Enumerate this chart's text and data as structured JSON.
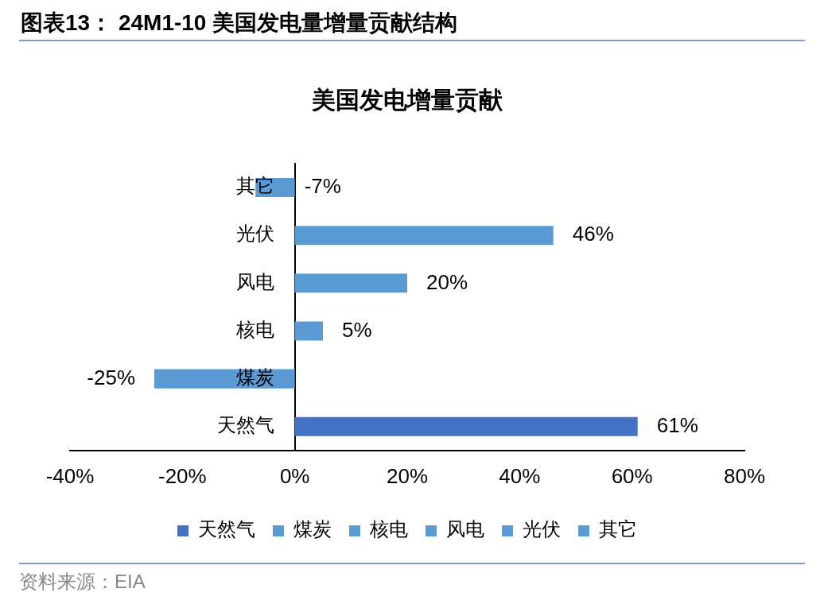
{
  "chart_data": {
    "type": "bar",
    "orientation": "horizontal",
    "stacked": true,
    "title": "图表13： 24M1-10 美国发电量增量贡献结构",
    "subtitle": "美国发电增量贡献",
    "categories": [
      "其它",
      "光伏",
      "风电",
      "核电",
      "煤炭",
      "天然气"
    ],
    "series": [
      {
        "name": "天然气",
        "color": "#4472c4",
        "values": [
          null,
          null,
          null,
          null,
          null,
          61
        ],
        "value_labels": [
          null,
          null,
          null,
          null,
          null,
          "61%"
        ]
      },
      {
        "name": "煤炭",
        "color": "#5b9bd5",
        "values": [
          null,
          null,
          null,
          null,
          -25,
          null
        ],
        "value_labels": [
          null,
          null,
          null,
          null,
          "-25%",
          null
        ]
      },
      {
        "name": "核电",
        "color": "#5b9bd5",
        "values": [
          null,
          null,
          null,
          5,
          null,
          null
        ],
        "value_labels": [
          null,
          null,
          null,
          "5%",
          null,
          null
        ]
      },
      {
        "name": "风电",
        "color": "#5b9bd5",
        "values": [
          null,
          null,
          20,
          null,
          null,
          null
        ],
        "value_labels": [
          null,
          null,
          "20%",
          null,
          null,
          null
        ]
      },
      {
        "name": "光伏",
        "color": "#5b9bd5",
        "values": [
          null,
          46,
          null,
          null,
          null,
          null
        ],
        "value_labels": [
          null,
          "46%",
          null,
          null,
          null,
          null
        ]
      },
      {
        "name": "其它",
        "color": "#5b9bd5",
        "values": [
          -7,
          null,
          null,
          null,
          null,
          null
        ],
        "value_labels": [
          "-7%",
          null,
          null,
          null,
          null,
          null
        ]
      }
    ],
    "xlim": [
      -40,
      80
    ],
    "xticks": [
      {
        "value": -40,
        "label": "-40%"
      },
      {
        "value": -20,
        "label": "-20%"
      },
      {
        "value": 0,
        "label": "0%"
      },
      {
        "value": 20,
        "label": "20%"
      },
      {
        "value": 40,
        "label": "40%"
      },
      {
        "value": 60,
        "label": "60%"
      },
      {
        "value": 80,
        "label": "80%"
      }
    ],
    "grid": false,
    "legend": "bottom",
    "annotations": [
      "资料来源：EIA"
    ]
  }
}
